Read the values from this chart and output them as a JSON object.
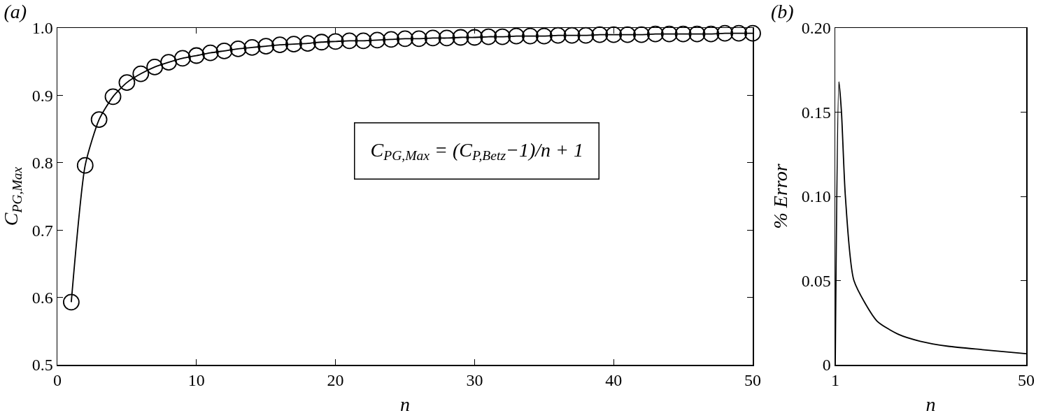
{
  "chart_data": [
    {
      "type": "line",
      "title": "(a)",
      "xlabel": "n",
      "ylabel": "C$_{PG,Max}$",
      "annotations": [
        "C$_{PG,Max}$ = (C$_{P,Betz}$−1)/n + 1"
      ],
      "color": "#000000",
      "marker": "circle",
      "line_style": "solid",
      "x": [
        1,
        2,
        3,
        4,
        5,
        6,
        7,
        8,
        9,
        10,
        11,
        12,
        13,
        14,
        15,
        16,
        17,
        18,
        19,
        20,
        21,
        22,
        23,
        24,
        25,
        26,
        27,
        28,
        29,
        30,
        31,
        32,
        33,
        34,
        35,
        36,
        37,
        38,
        39,
        40,
        41,
        42,
        43,
        44,
        45,
        46,
        47,
        48,
        49,
        50
      ],
      "values": [
        0.593,
        0.796,
        0.864,
        0.898,
        0.919,
        0.932,
        0.942,
        0.949,
        0.955,
        0.959,
        0.963,
        0.966,
        0.969,
        0.971,
        0.973,
        0.975,
        0.976,
        0.977,
        0.979,
        0.98,
        0.981,
        0.981,
        0.982,
        0.983,
        0.984,
        0.984,
        0.985,
        0.985,
        0.986,
        0.986,
        0.987,
        0.987,
        0.988,
        0.988,
        0.988,
        0.989,
        0.989,
        0.989,
        0.99,
        0.99,
        0.99,
        0.99,
        0.991,
        0.991,
        0.991,
        0.991,
        0.991,
        0.992,
        0.992,
        0.992
      ],
      "xlim": [
        0,
        50
      ],
      "xticks": [
        0,
        10,
        20,
        30,
        40,
        50
      ],
      "ylim": [
        0.5,
        1
      ],
      "yticks": [
        0.5,
        0.6,
        0.7,
        0.8,
        0.9,
        {
          "value": 1,
          "label": "1.0"
        }
      ]
    },
    {
      "type": "line",
      "title": "(b)",
      "xlabel": "n",
      "ylabel": "% Error",
      "color": "#000000",
      "marker": "none",
      "line_style": "solid",
      "x": [
        1,
        1.95,
        2.6,
        3.6,
        5.8,
        11.7,
        17.3,
        22.8,
        30,
        38.7,
        50
      ],
      "values": [
        0,
        0.168,
        0.15,
        0.1,
        0.05,
        0.026,
        0.018,
        0.014,
        0.011,
        0.009,
        0.0066
      ],
      "xlim": [
        1,
        50
      ],
      "xticks": [
        1,
        50
      ],
      "ylim": [
        0,
        0.2
      ],
      "yticks": [
        0,
        0.05,
        {
          "value": 0.1,
          "label": "0.10"
        },
        0.15,
        {
          "value": 0.2,
          "label": "0.20"
        }
      ]
    }
  ]
}
